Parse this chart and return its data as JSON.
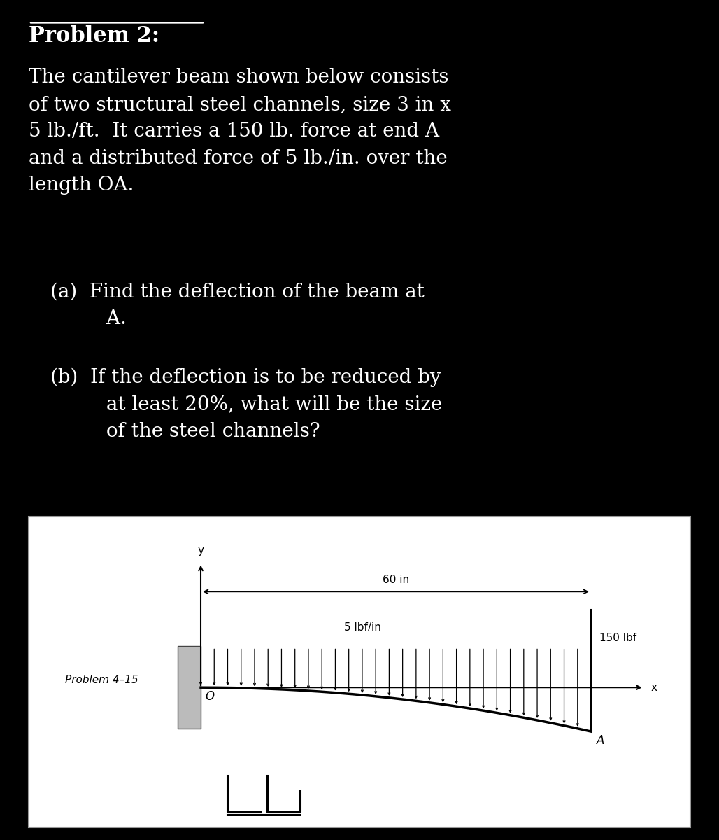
{
  "bg_color": "#000000",
  "text_color": "#ffffff",
  "title": "Problem 2:",
  "para1": "The cantilever beam shown below consists\nof two structural steel channels, size 3 in x\n5 lb./ft.  It carries a 150 lb. force at end A\nand a distributed force of 5 lb./in. over the\nlength OA.",
  "part_a": "(a)  Find the deflection of the beam at\n         A.",
  "part_b": "(b)  If the deflection is to be reduced by\n         at least 20%, what will be the size\n         of the steel channels?",
  "diagram_label": "Problem 4–15",
  "dim_label": "60 in",
  "force_label": "150 lbf",
  "dist_label": "5 lbf/in",
  "x_axis_label": "x",
  "y_axis_label": "y",
  "O_label": "O",
  "A_label": "A"
}
